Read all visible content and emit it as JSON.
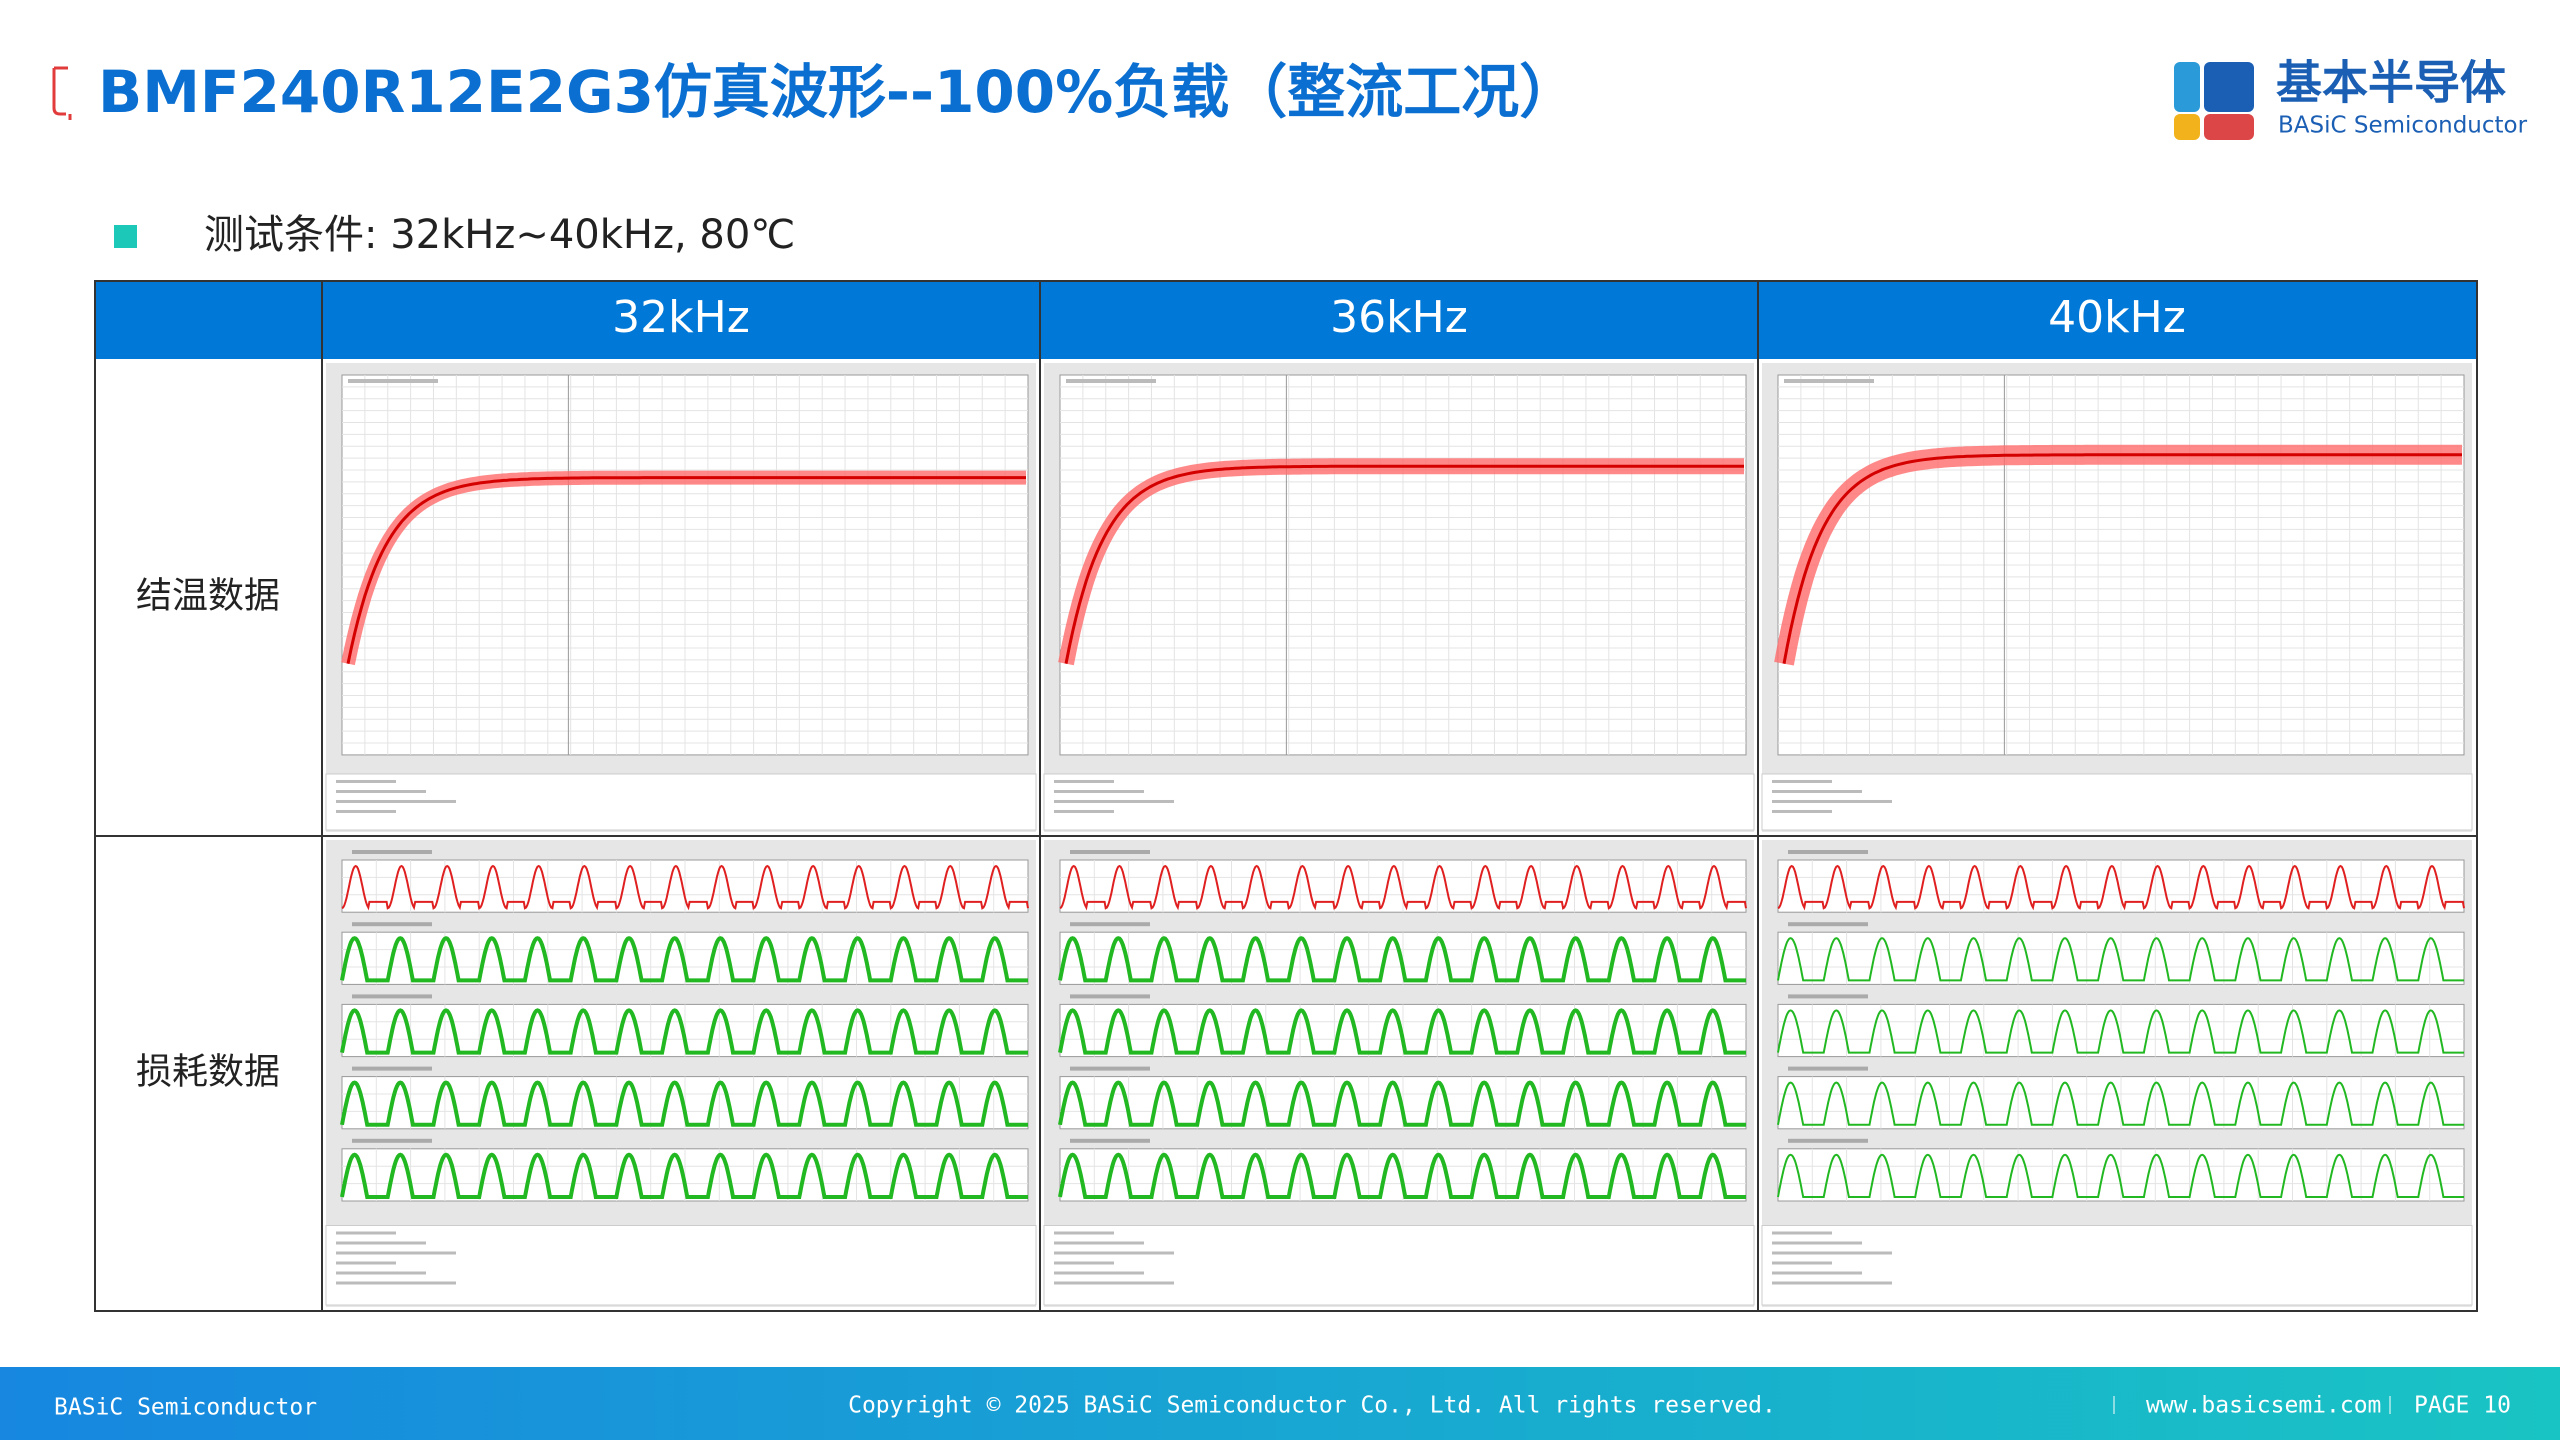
{
  "header": {
    "title": "BMF240R12E2G3仿真波形--100%负载（整流工况）",
    "logo_cn": "基本半导体",
    "logo_en": "BASiC Semiconductor"
  },
  "conditions": "测试条件: 32kHz~40kHz, 80℃",
  "table": {
    "columns": [
      "32kHz",
      "36kHz",
      "40kHz"
    ],
    "rows": [
      "结温数据",
      "损耗数据"
    ]
  },
  "footer": {
    "company": "BASiC Semiconductor",
    "copyright": "Copyright © 2025 BASiC Semiconductor Co., Ltd. All rights reserved.",
    "website": "www.basicsemi.com",
    "page": "PAGE 10"
  }
}
